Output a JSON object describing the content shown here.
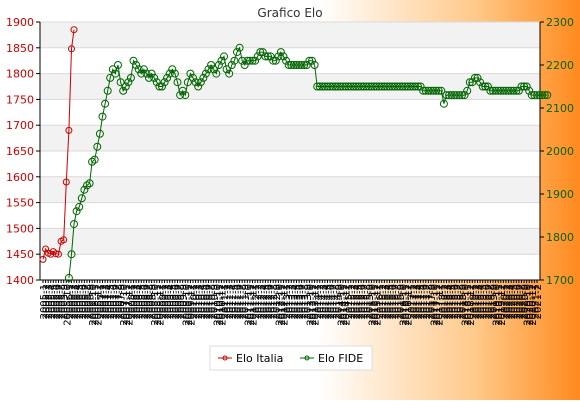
{
  "chart_data": {
    "type": "line",
    "title": "Grafico Elo",
    "y_left": {
      "min": 1400,
      "max": 1900,
      "ticks": [
        1400,
        1450,
        1500,
        1550,
        1600,
        1650,
        1700,
        1750,
        1800,
        1850,
        1900
      ],
      "color": "#cc0000"
    },
    "y_right": {
      "min": 1700,
      "max": 2300,
      "ticks": [
        1700,
        1800,
        1900,
        2000,
        2100,
        2200,
        2300
      ],
      "color": "#006600"
    },
    "grid": true,
    "legend_position": "bottom",
    "x_tick_labels": [
      "2005-1",
      "2005-2",
      "2005-3",
      "2005-4",
      "2005-5",
      "2005-6",
      "2005-7",
      "2005-8",
      "2005-9",
      "2005-10",
      "2006-1",
      "2006-2",
      "2006-3",
      "2006-4",
      "2006-5",
      "2006-6",
      "2006-7",
      "2006-8",
      "2006-9",
      "2006-10",
      "2006-11",
      "2006-12",
      "2007-1",
      "2007-2",
      "2007-3",
      "2007-4",
      "2007-5",
      "2007-6",
      "2007-7",
      "2007-8",
      "2007-9",
      "2007-10",
      "2007-11",
      "2007-12",
      "2008-1",
      "2008-2",
      "2008-3",
      "2008-4",
      "2008-5",
      "2008-6",
      "2008-7",
      "2008-8",
      "2008-9",
      "2008-10",
      "2008-11",
      "2008-12",
      "2009-1",
      "2009-2",
      "2009-3",
      "2009-4",
      "2009-5",
      "2009-6",
      "2009-7",
      "2009-8",
      "2009-9",
      "2009-10",
      "2009-11",
      "2009-12",
      "2010-1",
      "2010-2",
      "2010-3",
      "2010-4",
      "2010-5",
      "2010-6",
      "2010-7",
      "2010-8",
      "2010-9",
      "2010-10",
      "2010-11",
      "2010-12",
      "2011-1",
      "2011-2",
      "2011-3",
      "2011-4",
      "2011-5",
      "2011-6",
      "2011-7",
      "2011-8",
      "2011-9",
      "2011-10",
      "2011-11",
      "2011-12",
      "2012-1",
      "2012-2",
      "2012-3",
      "2012-4",
      "2012-5",
      "2012-6",
      "2012-7",
      "2012-8",
      "2012-9",
      "2012-10",
      "2012-11",
      "2012-12",
      "2013-1",
      "2013-2",
      "2013-3",
      "2013-4",
      "2013-5",
      "2013-6",
      "2013-7",
      "2013-8",
      "2013-9",
      "2013-10",
      "2013-11",
      "2013-12",
      "2014-1",
      "2014-2",
      "2014-3",
      "2014-4",
      "2014-5",
      "2014-6",
      "2014-7",
      "2014-8",
      "2014-9",
      "2014-10",
      "2014-11",
      "2014-12",
      "2015-1",
      "2015-2",
      "2015-3",
      "2015-4",
      "2015-5",
      "2015-6",
      "2015-7",
      "2015-8",
      "2015-9",
      "2015-10",
      "2015-11",
      "2015-12",
      "2016-1",
      "2016-2",
      "2016-3",
      "2016-4",
      "2016-5",
      "2016-6",
      "2016-7",
      "2016-8",
      "2016-9",
      "2016-10",
      "2016-11",
      "2016-12",
      "2017-1",
      "2017-2",
      "2017-3",
      "2017-4",
      "2017-5",
      "2017-6",
      "2017-7",
      "2017-8",
      "2017-9",
      "2017-10",
      "2017-11",
      "2017-12",
      "2018-1",
      "2018-2",
      "2018-3",
      "2018-4",
      "2018-5",
      "2018-6",
      "2018-7",
      "2018-8",
      "2018-9",
      "2018-10",
      "2018-11",
      "2018-12",
      "2019-1",
      "2019-2",
      "2019-3",
      "2019-4",
      "2019-5",
      "2019-6",
      "2019-7",
      "2019-8",
      "2019-9",
      "2019-10",
      "2019-11",
      "2019-12",
      "2020-1",
      "2020-2",
      "2020-3",
      "2020-4",
      "2020-5",
      "2020-6",
      "2020-7",
      "2020-8",
      "2020-9",
      "2020-10",
      "2020-11",
      "2020-12",
      "2021-1",
      "2021-2"
    ],
    "series": [
      {
        "name": "Elo Italia",
        "axis": "left",
        "color": "#cc0000",
        "start_index": 0,
        "values": [
          1440,
          1460,
          1452,
          1450,
          1455,
          1451,
          1450,
          1475,
          1478,
          1590,
          1690,
          1848,
          1885
        ]
      },
      {
        "name": "Elo FIDE",
        "axis": "right",
        "color": "#006600",
        "start_index": 10,
        "values": [
          1705,
          1760,
          1830,
          1860,
          1870,
          1890,
          1910,
          1920,
          1925,
          1975,
          1980,
          2010,
          2040,
          2080,
          2110,
          2140,
          2170,
          2190,
          2180,
          2200,
          2160,
          2140,
          2150,
          2160,
          2170,
          2210,
          2200,
          2190,
          2180,
          2190,
          2180,
          2170,
          2180,
          2170,
          2160,
          2150,
          2150,
          2160,
          2170,
          2180,
          2190,
          2180,
          2160,
          2130,
          2140,
          2130,
          2160,
          2180,
          2170,
          2160,
          2150,
          2160,
          2170,
          2180,
          2190,
          2200,
          2190,
          2180,
          2200,
          2210,
          2220,
          2190,
          2180,
          2200,
          2210,
          2230,
          2240,
          2210,
          2200,
          2210,
          2210,
          2210,
          2210,
          2220,
          2230,
          2230,
          2220,
          2220,
          2220,
          2210,
          2210,
          2220,
          2230,
          2220,
          2210,
          2200,
          2200,
          2200,
          2200,
          2200,
          2200,
          2200,
          2200,
          2210,
          2210,
          2200,
          2150,
          2150,
          2150,
          2150,
          2150,
          2150,
          2150,
          2150,
          2150,
          2150,
          2150,
          2150,
          2150,
          2150,
          2150,
          2150,
          2150,
          2150,
          2150,
          2150,
          2150,
          2150,
          2150,
          2150,
          2150,
          2150,
          2150,
          2150,
          2150,
          2150,
          2150,
          2150,
          2150,
          2150,
          2150,
          2150,
          2150,
          2150,
          2150,
          2150,
          2150,
          2140,
          2140,
          2140,
          2140,
          2140,
          2140,
          2140,
          2140,
          2110,
          2130,
          2130,
          2130,
          2130,
          2130,
          2130,
          2130,
          2130,
          2140,
          2160,
          2160,
          2170,
          2170,
          2160,
          2150,
          2150,
          2150,
          2140,
          2140,
          2140,
          2140,
          2140,
          2140,
          2140,
          2140,
          2140,
          2140,
          2140,
          2140,
          2150,
          2150,
          2150,
          2140,
          2130,
          2130,
          2130,
          2130,
          2130,
          2130,
          2130
        ]
      }
    ]
  }
}
